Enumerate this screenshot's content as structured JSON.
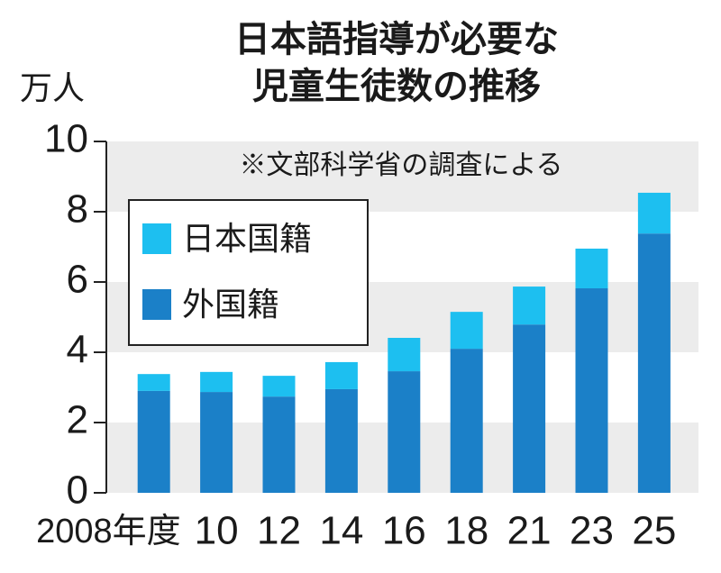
{
  "chart_data": {
    "type": "stacked-bar",
    "title": [
      "日本語指導が必要な",
      "児童生徒数の推移"
    ],
    "y_unit": "万人",
    "note": "※文部科学省の調査による",
    "categories": [
      "2008年度",
      "10",
      "12",
      "14",
      "16",
      "18",
      "21",
      "23",
      "25"
    ],
    "series": [
      {
        "name": "外国籍",
        "color": "#1b80c8",
        "values": [
          2.9,
          2.87,
          2.74,
          2.95,
          3.46,
          4.1,
          4.79,
          5.82,
          7.38
        ]
      },
      {
        "name": "日本国籍",
        "color": "#1dbff0",
        "values": [
          0.48,
          0.57,
          0.59,
          0.77,
          0.95,
          1.05,
          1.08,
          1.13,
          1.16
        ]
      }
    ],
    "ylim": [
      0,
      10
    ],
    "yticks": [
      0,
      2,
      4,
      6,
      8,
      10
    ],
    "grid": "bands"
  }
}
